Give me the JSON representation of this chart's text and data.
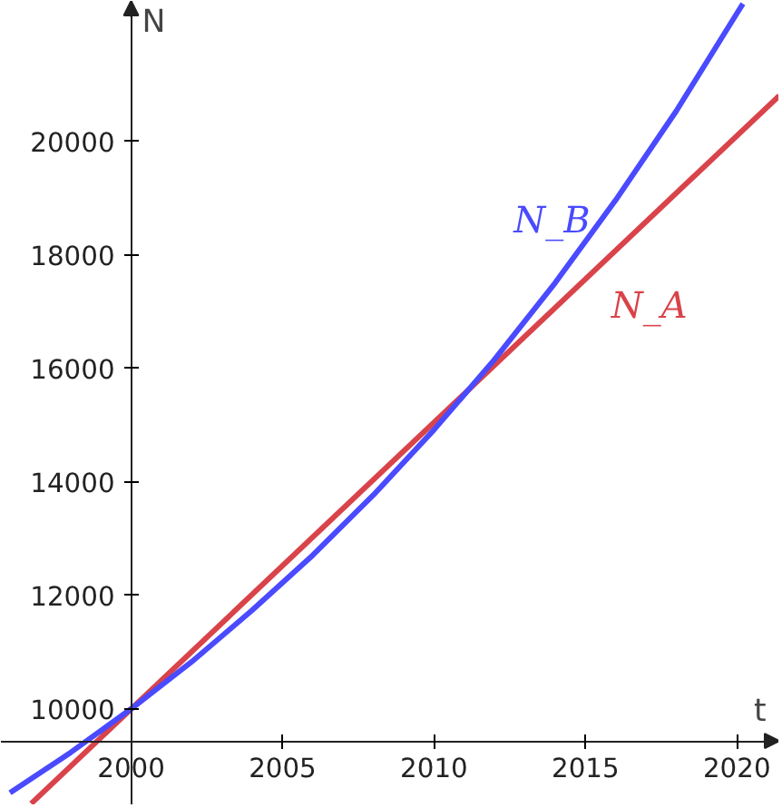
{
  "chart_data": {
    "type": "line",
    "xlabel": "t",
    "ylabel": "N",
    "xlim": [
      1995.7,
      2021.4
    ],
    "ylim": [
      8300,
      22480
    ],
    "xticks": [
      2000,
      2005,
      2010,
      2015,
      2020
    ],
    "yticks": [
      10000,
      12000,
      14000,
      16000,
      18000,
      20000
    ],
    "grid": false,
    "legend": false,
    "marker": "none",
    "line_style": "solid",
    "series": [
      {
        "name": "N_A",
        "color": "#d9434a",
        "x": [
          1996.7,
          2021.4
        ],
        "values": [
          8330,
          20810
        ]
      },
      {
        "name": "N_B",
        "color": "#4a4aff",
        "x": [
          1996,
          1998,
          2000,
          2002,
          2004,
          2006,
          2008,
          2010,
          2012,
          2014,
          2016,
          2018,
          2020,
          2020.2
        ],
        "values": [
          8520,
          9230,
          10000,
          10830,
          11740,
          12710,
          13770,
          14920,
          16160,
          17510,
          18970,
          20540,
          22260,
          22430
        ]
      }
    ]
  }
}
